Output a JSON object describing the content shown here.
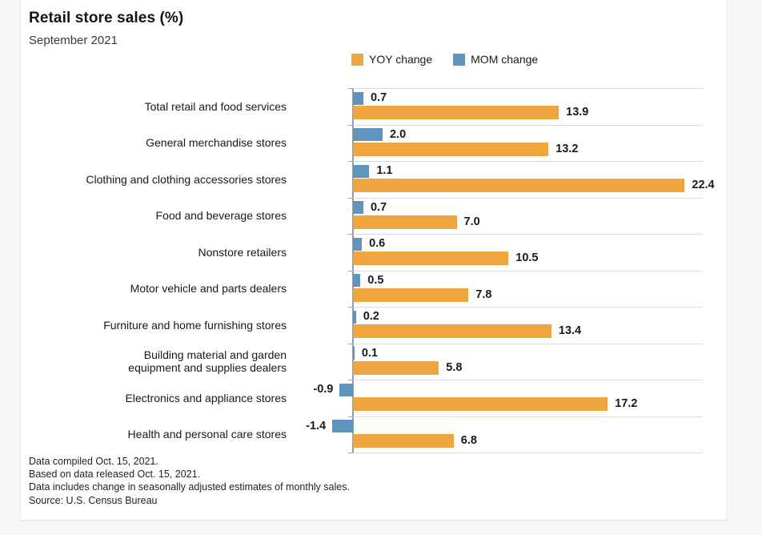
{
  "header": {
    "title": "Retail store sales (%)",
    "subtitle": "September 2021"
  },
  "legend": [
    {
      "label": "YOY change",
      "color": "#f0a63f"
    },
    {
      "label": "MOM change",
      "color": "#5f94bc"
    }
  ],
  "chart_data": {
    "type": "bar",
    "orientation": "horizontal",
    "title": "Retail store sales (%)",
    "subtitle": "September 2021",
    "xlim": [
      -2,
      25.5
    ],
    "grid": "row-separators",
    "legend_position": "top",
    "value_labels": true,
    "categories": [
      "Total retail and food services",
      "General merchandise stores",
      "Clothing and clothing accessories stores",
      "Food and beverage stores",
      "Nonstore retailers",
      "Motor vehicle and parts dealers",
      "Furniture and home furnishing stores",
      "Building material and garden\nequipment and supplies dealers",
      "Electronics and appliance stores",
      "Health and personal care stores"
    ],
    "series": [
      {
        "name": "YOY change",
        "color": "#f0a63f",
        "values": [
          13.9,
          13.2,
          22.4,
          7.0,
          10.5,
          7.8,
          13.4,
          5.8,
          17.2,
          6.8
        ],
        "labels": [
          "13.9",
          "13.2",
          "22.4",
          "7.0",
          "10.5",
          "7.8",
          "13.4",
          "5.8",
          "17.2",
          "6.8"
        ]
      },
      {
        "name": "MOM change",
        "color": "#5f94bc",
        "values": [
          0.7,
          2.0,
          1.1,
          0.7,
          0.6,
          0.5,
          0.2,
          0.1,
          -0.9,
          -1.4
        ],
        "labels": [
          "0.7",
          "2.0",
          "1.1",
          "0.7",
          "0.6",
          "0.5",
          "0.2",
          "0.1",
          "-0.9",
          "-1.4"
        ]
      }
    ]
  },
  "footnotes": [
    "Data compiled Oct. 15, 2021.",
    "Based on data released Oct. 15, 2021.",
    "Data includes change in seasonally adjusted estimates of monthly sales.",
    "Source: U.S. Census Bureau"
  ]
}
